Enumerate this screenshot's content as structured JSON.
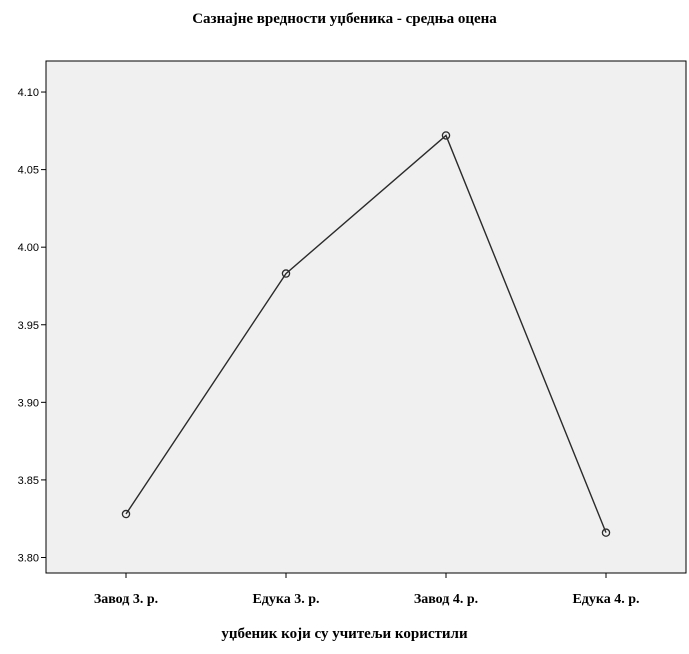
{
  "chart_data": {
    "type": "line",
    "title": "Сазнајне вредности уџбеника - средња оцена",
    "xlabel": "уџбеник који су учитељи користили",
    "ylabel": "",
    "categories": [
      "Завод 3. р.",
      "Едука 3. р.",
      "Завод 4. р.",
      "Едука 4. р."
    ],
    "values": [
      3.828,
      3.983,
      4.072,
      3.816
    ],
    "ylim": [
      3.79,
      4.12
    ],
    "yticks": [
      "3.80",
      "3.85",
      "3.90",
      "3.95",
      "4.00",
      "4.05",
      "4.10"
    ],
    "grid": false,
    "background": "#f0f0f0",
    "line_color": "#2b2b2b"
  }
}
